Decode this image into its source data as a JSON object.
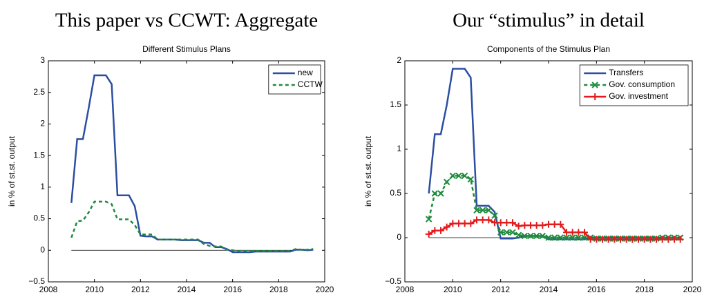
{
  "chart_data": [
    {
      "type": "line",
      "title": "This paper vs CCWT: Aggregate",
      "subtitle": "Different Stimulus Plans",
      "ylabel": "in % of st.st. output",
      "x": [
        2009,
        2009.25,
        2009.5,
        2009.75,
        2010,
        2010.25,
        2010.5,
        2010.75,
        2011,
        2011.25,
        2011.5,
        2011.75,
        2012,
        2012.25,
        2012.5,
        2012.75,
        2013,
        2013.25,
        2013.5,
        2013.75,
        2014,
        2014.25,
        2014.5,
        2014.75,
        2015,
        2015.25,
        2015.5,
        2015.75,
        2016,
        2016.25,
        2016.5,
        2016.75,
        2017,
        2017.25,
        2017.5,
        2017.75,
        2018,
        2018.25,
        2018.5,
        2018.75,
        2019,
        2019.25,
        2019.5
      ],
      "series": [
        {
          "name": "new",
          "color": "#2b4ea2",
          "style": "solid",
          "values": [
            0.75,
            1.76,
            1.76,
            2.25,
            2.77,
            2.77,
            2.77,
            2.63,
            0.87,
            0.87,
            0.87,
            0.7,
            0.23,
            0.22,
            0.22,
            0.17,
            0.17,
            0.17,
            0.17,
            0.16,
            0.16,
            0.16,
            0.16,
            0.12,
            0.12,
            0.05,
            0.05,
            0.02,
            -0.03,
            -0.03,
            -0.03,
            -0.03,
            -0.02,
            -0.02,
            -0.02,
            -0.02,
            -0.02,
            -0.02,
            -0.02,
            0.01,
            0.01,
            0,
            0.01
          ]
        },
        {
          "name": "CCTW",
          "color": "#1e8a3c",
          "style": "dashed",
          "values": [
            0.2,
            0.46,
            0.47,
            0.6,
            0.77,
            0.77,
            0.77,
            0.73,
            0.49,
            0.49,
            0.49,
            0.4,
            0.25,
            0.25,
            0.25,
            0.17,
            0.17,
            0.17,
            0.17,
            0.17,
            0.17,
            0.17,
            0.17,
            0.1,
            0.07,
            0.06,
            0.06,
            0.01,
            0,
            -0.01,
            -0.01,
            -0.01,
            -0.01,
            -0.01,
            -0.01,
            -0.01,
            -0.01,
            -0.01,
            -0.01,
            0.02,
            0.01,
            0.01,
            0.02
          ]
        }
      ],
      "xlim": [
        2008,
        2020
      ],
      "xticks": [
        2008,
        2010,
        2012,
        2014,
        2016,
        2018,
        2020
      ],
      "ylim": [
        -0.5,
        3
      ],
      "yticks": [
        {
          "value": -0.5,
          "label": "−0.5"
        },
        0,
        0.5,
        1,
        1.5,
        2,
        2.5,
        3
      ],
      "zero_line": true,
      "grid": false,
      "legend": "upper right"
    },
    {
      "type": "line",
      "title": "Our “stimulus” in detail",
      "subtitle": "Components of the Stimulus Plan",
      "ylabel": "in % of st.st. output",
      "x": [
        2009,
        2009.25,
        2009.5,
        2009.75,
        2010,
        2010.25,
        2010.5,
        2010.75,
        2011,
        2011.25,
        2011.5,
        2011.75,
        2012,
        2012.25,
        2012.5,
        2012.75,
        2013,
        2013.25,
        2013.5,
        2013.75,
        2014,
        2014.25,
        2014.5,
        2014.75,
        2015,
        2015.25,
        2015.5,
        2015.75,
        2016,
        2016.25,
        2016.5,
        2016.75,
        2017,
        2017.25,
        2017.5,
        2017.75,
        2018,
        2018.25,
        2018.5,
        2018.75,
        2019,
        2019.25,
        2019.5
      ],
      "series": [
        {
          "name": "Transfers",
          "color": "#2b4ea2",
          "style": "solid",
          "values": [
            0.5,
            1.17,
            1.17,
            1.5,
            1.91,
            1.91,
            1.91,
            1.81,
            0.36,
            0.36,
            0.36,
            0.29,
            -0.01,
            -0.01,
            -0.01,
            0,
            0.02,
            0.02,
            0.02,
            0.02,
            -0.02,
            -0.02,
            -0.02,
            -0.02,
            -0.02,
            -0.02,
            -0.02,
            0,
            0,
            0,
            0,
            0,
            0,
            0,
            0,
            0,
            0,
            0,
            0,
            0,
            0,
            0,
            0
          ]
        },
        {
          "name": "Gov. consumption",
          "color": "#1e8a3c",
          "style": "dashed",
          "marker": "x",
          "values": [
            0.21,
            0.5,
            0.5,
            0.63,
            0.7,
            0.7,
            0.7,
            0.66,
            0.31,
            0.31,
            0.31,
            0.25,
            0.06,
            0.06,
            0.06,
            0.03,
            0.02,
            0.02,
            0.02,
            0.02,
            0,
            0,
            0,
            0,
            0,
            0,
            0,
            0,
            -0.01,
            -0.01,
            -0.01,
            -0.01,
            -0.01,
            -0.01,
            -0.01,
            -0.01,
            -0.01,
            -0.01,
            -0.01,
            0,
            0,
            0,
            0
          ]
        },
        {
          "name": "Gov. investment",
          "color": "#e41a1c",
          "style": "solid",
          "marker": "+",
          "values": [
            0.04,
            0.08,
            0.08,
            0.12,
            0.16,
            0.16,
            0.16,
            0.16,
            0.2,
            0.2,
            0.2,
            0.17,
            0.17,
            0.17,
            0.17,
            0.13,
            0.14,
            0.14,
            0.14,
            0.14,
            0.15,
            0.15,
            0.15,
            0.06,
            0.06,
            0.06,
            0.06,
            -0.02,
            -0.02,
            -0.02,
            -0.02,
            -0.02,
            -0.02,
            -0.02,
            -0.02,
            -0.02,
            -0.02,
            -0.02,
            -0.02,
            -0.02,
            -0.02,
            -0.02,
            -0.02
          ]
        }
      ],
      "xlim": [
        2008,
        2020
      ],
      "xticks": [
        2008,
        2010,
        2012,
        2014,
        2016,
        2018,
        2020
      ],
      "ylim": [
        -0.5,
        2
      ],
      "yticks": [
        {
          "value": -0.5,
          "label": "−0.5"
        },
        0,
        0.5,
        1,
        1.5,
        2
      ],
      "zero_line": true,
      "grid": false,
      "legend": "upper right"
    }
  ]
}
